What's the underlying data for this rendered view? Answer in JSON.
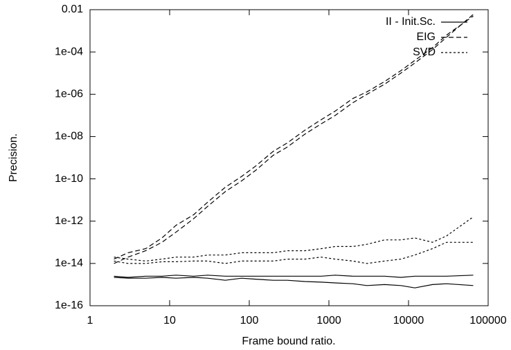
{
  "chart_data": {
    "type": "line",
    "log_x": true,
    "log_y": true,
    "legend": "top-right",
    "x_label": "Frame bound ratio.",
    "y_label": "Precision.",
    "x": [
      2,
      3,
      5,
      8,
      12,
      20,
      30,
      50,
      80,
      120,
      200,
      300,
      500,
      800,
      1200,
      2000,
      3000,
      5000,
      8000,
      12000,
      20000,
      30000,
      65000
    ],
    "series": [
      {
        "name": "II - Init.Sc.",
        "color": "#000000",
        "dash": "solid",
        "values": [
          2.5e-15,
          2.2e-15,
          2.5e-15,
          2.5e-15,
          2.8e-15,
          2.5e-15,
          2.8e-15,
          2.5e-15,
          2.5e-15,
          2.5e-15,
          2.5e-15,
          2.5e-15,
          2.5e-15,
          2.5e-15,
          2.8e-15,
          2.5e-15,
          2.5e-15,
          2.5e-15,
          2.2e-15,
          2.5e-15,
          2.5e-15,
          2.5e-15,
          2.8e-15
        ]
      },
      {
        "color": "#000000",
        "dash": "solid",
        "values": [
          2.2e-15,
          2e-15,
          2e-15,
          2.2e-15,
          2e-15,
          2.2e-15,
          2e-15,
          1.6e-15,
          2e-15,
          1.8e-15,
          1.6e-15,
          1.6e-15,
          1.4e-15,
          1.3e-15,
          1.2e-15,
          1.1e-15,
          9e-16,
          1e-15,
          9e-16,
          7e-16,
          1e-15,
          1.1e-15,
          9e-16
        ]
      },
      {
        "name": "EIG",
        "color": "#000000",
        "dash": "dashed",
        "values": [
          1.6e-14,
          3.2e-14,
          5e-14,
          1.6e-13,
          6.3e-13,
          2e-12,
          7.9e-12,
          4e-11,
          1.3e-10,
          4e-10,
          2e-09,
          5e-09,
          2e-08,
          6.3e-08,
          1.6e-07,
          6.3e-07,
          1.3e-06,
          4e-06,
          1.3e-05,
          4e-05,
          0.00016,
          0.00063,
          0.005
        ]
      },
      {
        "color": "#000000",
        "dash": "dashed",
        "values": [
          1e-14,
          2e-14,
          4e-14,
          1e-13,
          3e-13,
          1.3e-12,
          5e-12,
          2.5e-11,
          8e-11,
          2.5e-10,
          1.3e-09,
          3.2e-09,
          1.3e-08,
          4e-08,
          1e-07,
          4e-07,
          1e-06,
          3e-06,
          1e-05,
          3e-05,
          0.00013,
          0.0005,
          0.006
        ]
      },
      {
        "name": "SVD",
        "color": "#000000",
        "dash": "dotted",
        "values": [
          2e-14,
          1.6e-14,
          1.3e-14,
          1.6e-14,
          2e-14,
          2e-14,
          2.5e-14,
          2.5e-14,
          3.2e-14,
          3.2e-14,
          3.2e-14,
          4e-14,
          4e-14,
          5e-14,
          6.3e-14,
          6.3e-14,
          8e-14,
          1.3e-13,
          1.3e-13,
          1.6e-13,
          1e-13,
          2e-13,
          1.6e-12
        ]
      },
      {
        "color": "#000000",
        "dash": "dotted",
        "values": [
          1.3e-14,
          1e-14,
          1e-14,
          1.2e-14,
          1.2e-14,
          1.3e-14,
          1.3e-14,
          1e-14,
          1.3e-14,
          1.3e-14,
          1.3e-14,
          1.6e-14,
          1.6e-14,
          2e-14,
          1.6e-14,
          1.3e-14,
          1e-14,
          1.3e-14,
          1.6e-14,
          2.5e-14,
          5e-14,
          1e-13,
          1e-13
        ]
      }
    ],
    "xlim": [
      1,
      100000
    ],
    "xticks": [
      1,
      10,
      100,
      1000,
      10000,
      100000
    ],
    "ylim": [
      1e-16,
      0.01
    ],
    "yticks": [
      {
        "value": 1e-16,
        "label": "1e-16"
      },
      {
        "value": 1e-14,
        "label": "1e-14"
      },
      {
        "value": 1e-12,
        "label": "1e-12"
      },
      {
        "value": 1e-10,
        "label": "1e-10"
      },
      {
        "value": 1e-08,
        "label": "1e-08"
      },
      {
        "value": 1e-06,
        "label": "1e-06"
      },
      {
        "value": 0.0001,
        "label": "1e-04"
      },
      0.01
    ]
  }
}
